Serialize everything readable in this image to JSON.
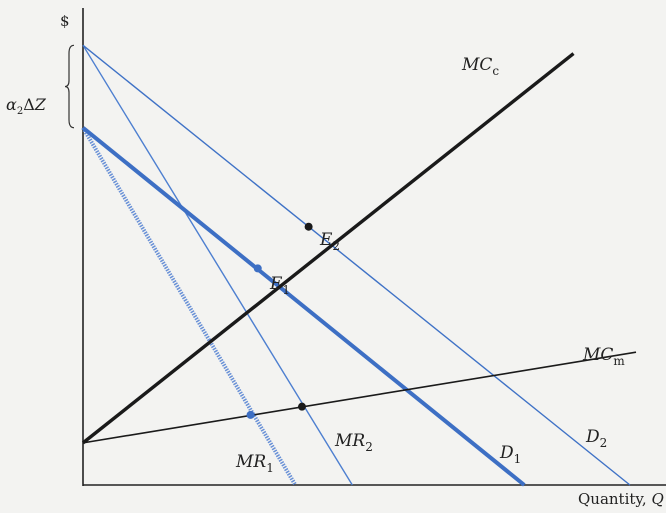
{
  "chart_data": {
    "type": "line",
    "title": "",
    "ylabel": "$",
    "xlabel": "Quantity, Q",
    "xlim": [
      0,
      100
    ],
    "ylim": [
      0,
      100
    ],
    "colors": {
      "axis": "#222222",
      "black": "#1a1a1a",
      "blue": "#3d6fc4",
      "light_blue": "#4d7fd0"
    },
    "brace_label": "α2ΔZ",
    "series": [
      {
        "name": "MCc",
        "x": [
          0,
          88.7
        ],
        "y": [
          9.2,
          94.2
        ]
      },
      {
        "name": "MCm",
        "x": [
          0,
          100
        ],
        "y": [
          9.2,
          29.0
        ]
      },
      {
        "name": "D1",
        "x": [
          0,
          79.8
        ],
        "y": [
          78.0,
          0
        ]
      },
      {
        "name": "MR1",
        "x": [
          0,
          38.4
        ],
        "y": [
          78.0,
          0
        ]
      },
      {
        "name": "D2",
        "x": [
          0,
          98.9
        ],
        "y": [
          96.0,
          0
        ]
      },
      {
        "name": "MR2",
        "x": [
          0,
          48.7
        ],
        "y": [
          96.0,
          0
        ]
      }
    ],
    "labels": {
      "MCc": {
        "main": "MC",
        "sub": "c"
      },
      "MCm": {
        "main": "MC",
        "sub": "m"
      },
      "D1": {
        "main": "D",
        "sub": "1"
      },
      "D2": {
        "main": "D",
        "sub": "2"
      },
      "MR1": {
        "main": "MR",
        "sub": "1"
      },
      "MR2": {
        "main": "MR",
        "sub": "2"
      },
      "E1": {
        "main": "E",
        "sub": "1"
      },
      "E2": {
        "main": "E",
        "sub": "2"
      }
    },
    "points": [
      {
        "name": "E1",
        "x": 31.6,
        "y": 47.3
      },
      {
        "name": "E2",
        "x": 40.8,
        "y": 56.4
      },
      {
        "name": "MR1-MCm",
        "x": 30.3,
        "y": 15.3
      },
      {
        "name": "MR2-MCm",
        "x": 39.6,
        "y": 17.1
      }
    ],
    "brace": {
      "y_from": 78.0,
      "y_to": 96.0
    }
  }
}
